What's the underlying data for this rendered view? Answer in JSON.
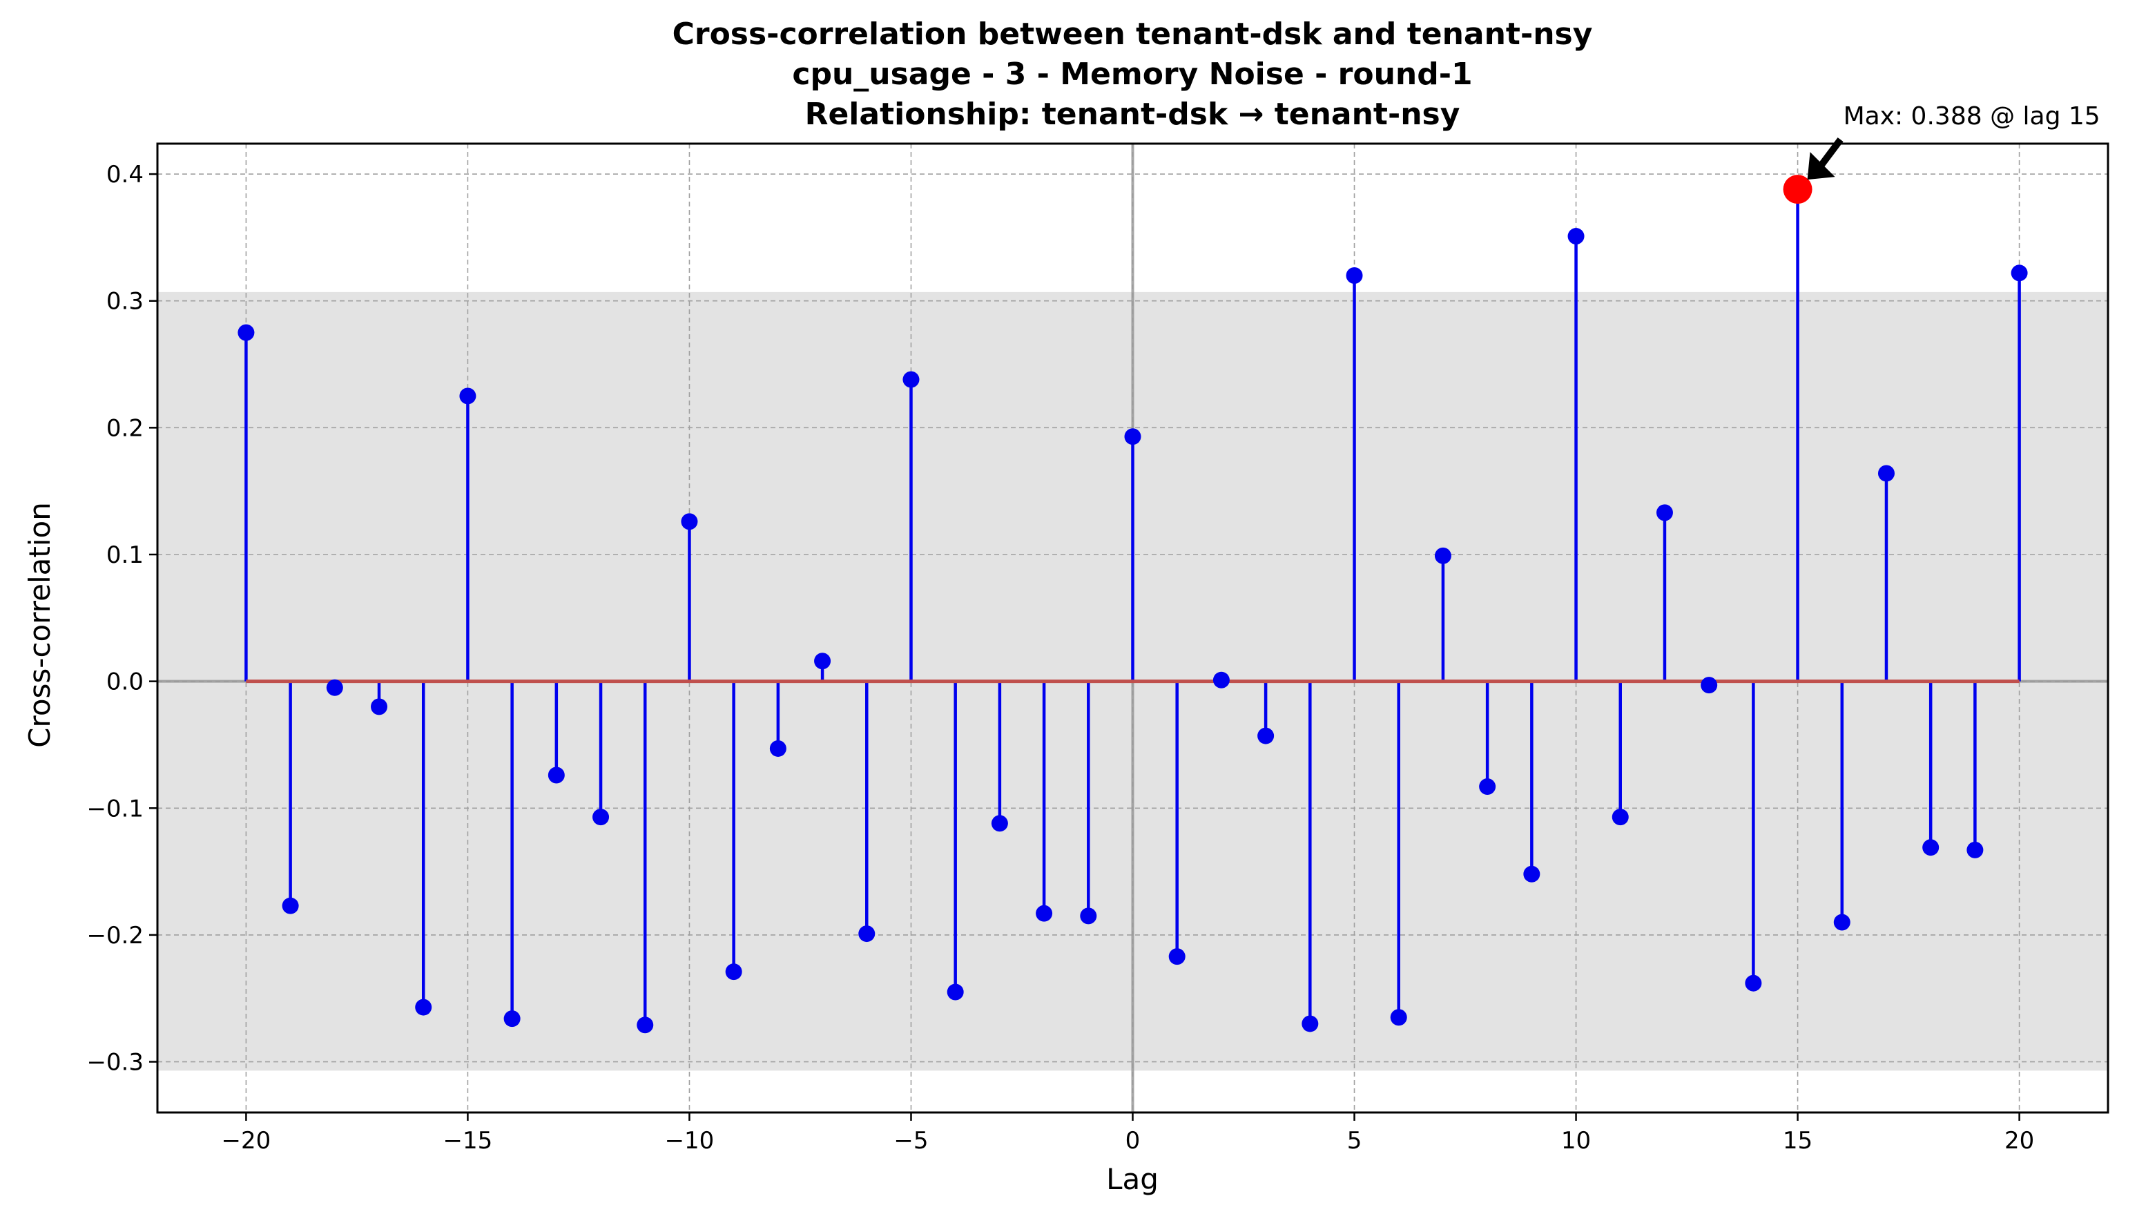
{
  "chart_data": {
    "type": "stem",
    "title_lines": [
      "Cross-correlation between tenant-dsk and tenant-nsy",
      "cpu_usage - 3 - Memory Noise - round-1",
      "Relationship: tenant-dsk → tenant-nsy"
    ],
    "xlabel": "Lag",
    "ylabel": "Cross-correlation",
    "xlim": [
      -22,
      22
    ],
    "ylim": [
      -0.34,
      0.424
    ],
    "xticks": [
      -20,
      -15,
      -10,
      -5,
      0,
      5,
      10,
      15,
      20
    ],
    "xtick_labels": [
      "−20",
      "−15",
      "−10",
      "−5",
      "0",
      "5",
      "10",
      "15",
      "20"
    ],
    "yticks": [
      -0.3,
      -0.2,
      -0.1,
      0.0,
      0.1,
      0.2,
      0.3,
      0.4
    ],
    "ytick_labels": [
      "−0.3",
      "−0.2",
      "−0.1",
      "0.0",
      "0.1",
      "0.2",
      "0.3",
      "0.4"
    ],
    "grid": true,
    "confidence_band": [
      -0.307,
      0.307
    ],
    "x": [
      -20,
      -19,
      -18,
      -17,
      -16,
      -15,
      -14,
      -13,
      -12,
      -11,
      -10,
      -9,
      -8,
      -7,
      -6,
      -5,
      -4,
      -3,
      -2,
      -1,
      0,
      1,
      2,
      3,
      4,
      5,
      6,
      7,
      8,
      9,
      10,
      11,
      12,
      13,
      14,
      15,
      16,
      17,
      18,
      19,
      20
    ],
    "y": [
      0.275,
      -0.177,
      -0.005,
      -0.02,
      -0.257,
      0.225,
      -0.266,
      -0.074,
      -0.107,
      -0.271,
      0.126,
      -0.229,
      -0.053,
      0.016,
      -0.199,
      0.238,
      -0.245,
      -0.112,
      -0.183,
      -0.185,
      0.193,
      -0.217,
      0.001,
      -0.043,
      -0.27,
      0.32,
      -0.265,
      0.099,
      -0.083,
      -0.152,
      0.351,
      -0.107,
      0.133,
      -0.003,
      -0.238,
      0.388,
      -0.19,
      0.164,
      -0.131,
      -0.133,
      0.322
    ],
    "max_point": {
      "x": 15,
      "y": 0.388,
      "label": "Max: 0.388 @ lag 15"
    },
    "colors": {
      "stem": "#0000ee",
      "marker": "#0000ee",
      "baseline": "#c0504d",
      "max_marker": "#ff0000",
      "band": "#e3e3e3",
      "zero_lines": "#999999",
      "grid": "#a0a0a0"
    }
  }
}
